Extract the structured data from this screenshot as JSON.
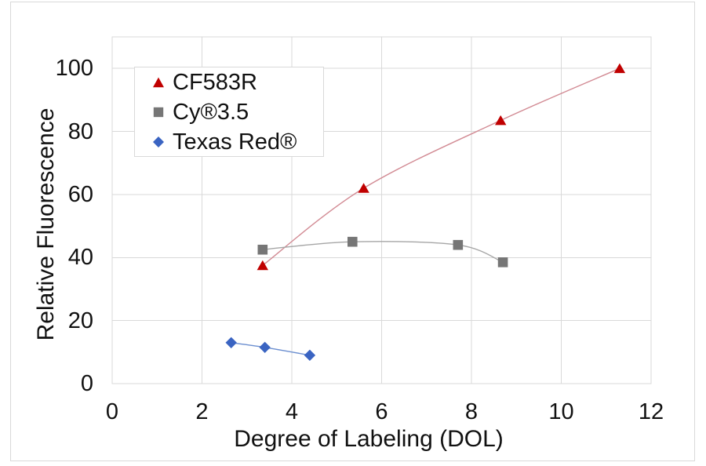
{
  "chart_data": {
    "type": "scatter",
    "subtype": "smooth-line-with-markers",
    "title": "",
    "xlabel": "Degree of Labeling (DOL)",
    "ylabel": "Relative Fluorescence",
    "xlim": [
      0,
      12
    ],
    "ylim": [
      0,
      110
    ],
    "x_ticks": [
      0,
      2,
      4,
      6,
      8,
      10,
      12
    ],
    "y_ticks": [
      0,
      20,
      40,
      60,
      80,
      100
    ],
    "grid": true,
    "legend_position": "upper-left-inside",
    "colors": {
      "grid": "#D9D9D9",
      "plot_border": "#D9D9D9",
      "chart_border": "#D9D9D9",
      "text": "#111111"
    },
    "series": [
      {
        "name": "CF583R",
        "marker": "triangle",
        "marker_color": "#C00000",
        "line_color": "#D28B94",
        "points": [
          [
            3.35,
            37.5
          ],
          [
            5.6,
            62
          ],
          [
            8.65,
            83.5
          ],
          [
            11.3,
            100
          ]
        ]
      },
      {
        "name": "Cy®3.5",
        "marker": "square",
        "marker_color": "#767676",
        "line_color": "#A6A6A6",
        "points": [
          [
            3.35,
            42.5
          ],
          [
            5.35,
            45
          ],
          [
            7.7,
            44
          ],
          [
            8.7,
            38.5
          ]
        ]
      },
      {
        "name": "Texas Red®",
        "marker": "diamond",
        "marker_color": "#3A64C2",
        "line_color": "#6C8FD0",
        "points": [
          [
            2.65,
            13
          ],
          [
            3.4,
            11.5
          ],
          [
            4.4,
            9
          ]
        ]
      }
    ]
  }
}
